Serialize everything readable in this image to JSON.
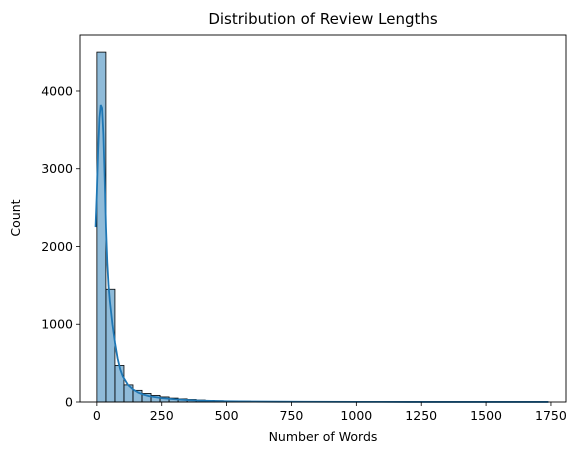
{
  "chart_data": {
    "type": "bar",
    "title": "Distribution of Review Lengths",
    "xlabel": "Number of Words",
    "ylabel": "Count",
    "xlim": [
      -65,
      1808
    ],
    "ylim": [
      0,
      4720
    ],
    "xticks": [
      0,
      250,
      500,
      750,
      1000,
      1250,
      1500,
      1750
    ],
    "yticks": [
      0,
      1000,
      2000,
      3000,
      4000
    ],
    "bin_start": 0,
    "bin_width": 34.8,
    "counts": [
      4500,
      1450,
      470,
      220,
      150,
      110,
      85,
      65,
      50,
      40,
      32,
      25,
      20,
      16,
      14,
      12,
      10,
      8,
      7,
      6,
      5,
      4,
      4,
      3,
      3,
      2,
      2,
      2,
      1,
      1,
      1,
      1,
      1,
      1,
      1,
      0,
      0,
      0,
      0,
      0,
      0,
      0,
      0,
      0,
      0,
      0,
      0,
      0,
      0,
      1
    ],
    "kde": {
      "x": [
        -5,
        0,
        5,
        10,
        15,
        20,
        25,
        30,
        35,
        40,
        45,
        50,
        60,
        70,
        80,
        90,
        100,
        120,
        140,
        160,
        180,
        200,
        250,
        300,
        350,
        400,
        500,
        600,
        700,
        800,
        1000,
        1200,
        1400,
        1600,
        1740
      ],
      "y": [
        2250,
        2700,
        3250,
        3650,
        3820,
        3780,
        3450,
        2900,
        2250,
        1800,
        1500,
        1300,
        1000,
        760,
        560,
        420,
        330,
        220,
        160,
        120,
        95,
        75,
        50,
        35,
        25,
        18,
        10,
        6,
        4,
        3,
        2,
        1,
        1,
        1,
        1
      ]
    },
    "colors": {
      "bar_fill": "#1f77b4",
      "kde_line": "#1f77b4"
    },
    "grid": false,
    "legend": "none"
  }
}
